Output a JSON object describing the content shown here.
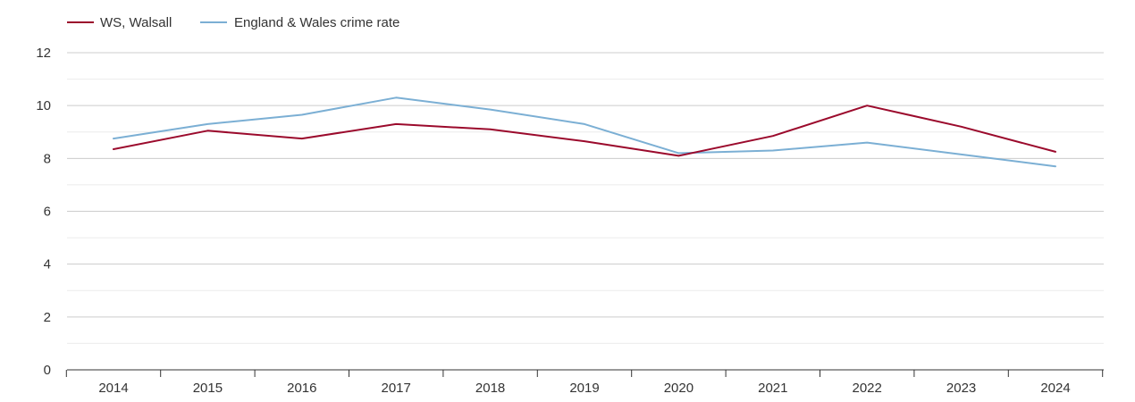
{
  "chart_data": {
    "type": "line",
    "title": "",
    "xlabel": "",
    "ylabel": "",
    "categories": [
      "2014",
      "2015",
      "2016",
      "2017",
      "2018",
      "2019",
      "2020",
      "2021",
      "2022",
      "2023",
      "2024"
    ],
    "ylim": [
      0,
      12
    ],
    "yticks": [
      "0",
      "2",
      "4",
      "6",
      "8",
      "10",
      "12"
    ],
    "grid": true,
    "legend_position": "top-left",
    "series": [
      {
        "name": "WS, Walsall",
        "color": "#9b0a2c",
        "values": [
          8.35,
          9.05,
          8.75,
          9.3,
          9.1,
          8.65,
          8.1,
          8.85,
          10.0,
          9.2,
          8.25
        ]
      },
      {
        "name": "England & Wales crime rate",
        "color": "#7bafd4",
        "values": [
          8.75,
          9.3,
          9.65,
          10.3,
          9.85,
          9.3,
          8.2,
          8.3,
          8.6,
          8.15,
          7.7
        ]
      }
    ]
  }
}
